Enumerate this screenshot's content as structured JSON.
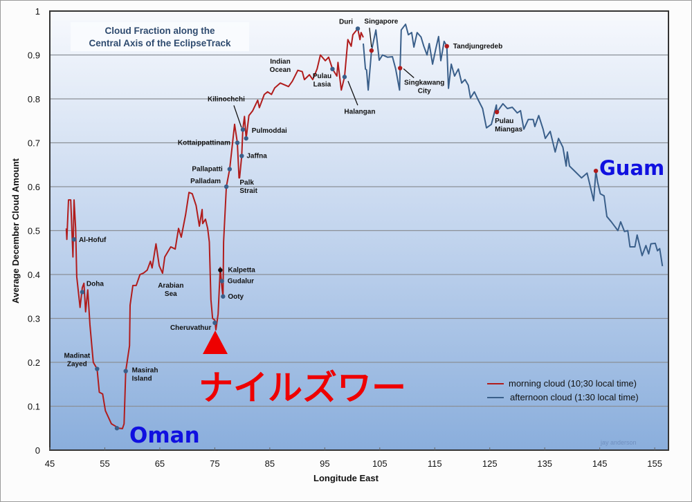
{
  "chart_data": {
    "type": "line",
    "title": "Cloud Fraction along the Central Axis of the EclipseTrack",
    "title_lines": [
      "Cloud Fraction along the",
      "Central Axis of the EclipseTrack"
    ],
    "xlabel": "Longitude East",
    "ylabel": "Average December Cloud Amount",
    "xlim": [
      45,
      157.5
    ],
    "ylim": [
      0,
      1
    ],
    "xticks": [
      "45",
      "55",
      "65",
      "75",
      "85",
      "95",
      "105",
      "115",
      "125",
      "135",
      "145",
      "155"
    ],
    "yticks": [
      "0",
      "0.1",
      "0.2",
      "0.3",
      "0.4",
      "0.5",
      "0.6",
      "0.7",
      "0.8",
      "0.9",
      "1"
    ],
    "grid": true,
    "legend_position": "bottom-right",
    "series": [
      {
        "name": "morning cloud (10;30 local time)",
        "color": "#b01c1c",
        "points": [
          [
            48.0,
            0.505
          ],
          [
            48.1,
            0.48
          ],
          [
            48.4,
            0.57
          ],
          [
            48.8,
            0.57
          ],
          [
            49.2,
            0.44
          ],
          [
            49.4,
            0.57
          ],
          [
            49.7,
            0.505
          ],
          [
            49.9,
            0.395
          ],
          [
            50.5,
            0.325
          ],
          [
            50.9,
            0.37
          ],
          [
            51.2,
            0.38
          ],
          [
            51.5,
            0.315
          ],
          [
            51.9,
            0.365
          ],
          [
            52.3,
            0.285
          ],
          [
            52.9,
            0.2
          ],
          [
            53.6,
            0.185
          ],
          [
            54.0,
            0.132
          ],
          [
            54.6,
            0.128
          ],
          [
            55.1,
            0.09
          ],
          [
            56.2,
            0.06
          ],
          [
            57.0,
            0.054
          ],
          [
            57.5,
            0.05
          ],
          [
            58.2,
            0.049
          ],
          [
            58.5,
            0.06
          ],
          [
            58.8,
            0.18
          ],
          [
            59.5,
            0.238
          ],
          [
            59.6,
            0.33
          ],
          [
            60.1,
            0.375
          ],
          [
            60.7,
            0.375
          ],
          [
            61.4,
            0.4
          ],
          [
            62.0,
            0.403
          ],
          [
            62.7,
            0.41
          ],
          [
            63.3,
            0.43
          ],
          [
            63.6,
            0.415
          ],
          [
            64.3,
            0.47
          ],
          [
            64.9,
            0.42
          ],
          [
            65.5,
            0.403
          ],
          [
            65.9,
            0.44
          ],
          [
            67.0,
            0.463
          ],
          [
            67.8,
            0.458
          ],
          [
            68.4,
            0.505
          ],
          [
            68.9,
            0.485
          ],
          [
            69.7,
            0.537
          ],
          [
            70.3,
            0.587
          ],
          [
            70.9,
            0.584
          ],
          [
            71.6,
            0.557
          ],
          [
            72.2,
            0.51
          ],
          [
            72.7,
            0.548
          ],
          [
            72.8,
            0.516
          ],
          [
            73.3,
            0.526
          ],
          [
            73.7,
            0.505
          ],
          [
            74.0,
            0.474
          ],
          [
            74.3,
            0.343
          ],
          [
            74.6,
            0.3
          ],
          [
            75.0,
            0.296
          ],
          [
            75.2,
            0.274
          ],
          [
            75.6,
            0.31
          ],
          [
            76.0,
            0.416
          ],
          [
            76.3,
            0.37
          ],
          [
            76.5,
            0.35
          ],
          [
            76.6,
            0.474
          ],
          [
            77.1,
            0.6
          ],
          [
            77.7,
            0.64
          ],
          [
            78.6,
            0.742
          ],
          [
            79.1,
            0.7
          ],
          [
            79.4,
            0.62
          ],
          [
            79.5,
            0.62
          ],
          [
            79.9,
            0.67
          ],
          [
            80.1,
            0.73
          ],
          [
            80.4,
            0.76
          ],
          [
            80.7,
            0.71
          ],
          [
            81.2,
            0.762
          ],
          [
            81.9,
            0.773
          ],
          [
            82.8,
            0.797
          ],
          [
            83.1,
            0.78
          ],
          [
            84.0,
            0.81
          ],
          [
            84.6,
            0.816
          ],
          [
            85.3,
            0.81
          ],
          [
            85.9,
            0.825
          ],
          [
            86.9,
            0.836
          ],
          [
            88.4,
            0.828
          ],
          [
            89.1,
            0.84
          ],
          [
            90.1,
            0.865
          ],
          [
            90.9,
            0.862
          ],
          [
            91.3,
            0.844
          ],
          [
            92.2,
            0.855
          ],
          [
            92.8,
            0.844
          ],
          [
            93.6,
            0.868
          ],
          [
            94.2,
            0.9
          ],
          [
            95.1,
            0.887
          ],
          [
            95.7,
            0.895
          ],
          [
            96.4,
            0.868
          ],
          [
            97.2,
            0.852
          ],
          [
            97.4,
            0.883
          ],
          [
            98.0,
            0.82
          ],
          [
            98.6,
            0.85
          ],
          [
            99.2,
            0.935
          ],
          [
            99.8,
            0.92
          ],
          [
            100.1,
            0.946
          ],
          [
            101.0,
            0.96
          ],
          [
            101.4,
            0.935
          ],
          [
            101.6,
            0.951
          ],
          [
            102.0,
            0.94
          ]
        ]
      },
      {
        "name": "afternoon cloud (1:30 local time)",
        "color": "#3a5f8a",
        "points": [
          [
            102.0,
            0.926
          ],
          [
            102.4,
            0.868
          ],
          [
            102.6,
            0.866
          ],
          [
            102.9,
            0.82
          ],
          [
            103.5,
            0.91
          ],
          [
            104.3,
            0.957
          ],
          [
            104.9,
            0.888
          ],
          [
            105.5,
            0.9
          ],
          [
            106.4,
            0.895
          ],
          [
            107.3,
            0.896
          ],
          [
            107.9,
            0.868
          ],
          [
            108.6,
            0.82
          ],
          [
            108.7,
            0.87
          ],
          [
            108.9,
            0.957
          ],
          [
            109.7,
            0.97
          ],
          [
            110.2,
            0.946
          ],
          [
            110.8,
            0.951
          ],
          [
            111.2,
            0.918
          ],
          [
            111.8,
            0.951
          ],
          [
            112.5,
            0.941
          ],
          [
            113.0,
            0.92
          ],
          [
            113.6,
            0.9
          ],
          [
            114.0,
            0.926
          ],
          [
            114.6,
            0.879
          ],
          [
            115.2,
            0.915
          ],
          [
            115.7,
            0.942
          ],
          [
            116.1,
            0.887
          ],
          [
            116.7,
            0.931
          ],
          [
            117.2,
            0.92
          ],
          [
            117.5,
            0.824
          ],
          [
            118.0,
            0.879
          ],
          [
            118.6,
            0.852
          ],
          [
            119.3,
            0.868
          ],
          [
            119.9,
            0.836
          ],
          [
            120.5,
            0.844
          ],
          [
            121.1,
            0.831
          ],
          [
            121.5,
            0.802
          ],
          [
            122.2,
            0.816
          ],
          [
            122.8,
            0.8
          ],
          [
            123.7,
            0.778
          ],
          [
            124.4,
            0.734
          ],
          [
            125.3,
            0.742
          ],
          [
            126.2,
            0.786
          ],
          [
            126.3,
            0.77
          ],
          [
            127.4,
            0.789
          ],
          [
            128.2,
            0.778
          ],
          [
            129.1,
            0.781
          ],
          [
            130.0,
            0.768
          ],
          [
            130.6,
            0.773
          ],
          [
            131.2,
            0.731
          ],
          [
            132.0,
            0.753
          ],
          [
            132.9,
            0.753
          ],
          [
            133.2,
            0.737
          ],
          [
            133.9,
            0.762
          ],
          [
            134.7,
            0.731
          ],
          [
            135.1,
            0.71
          ],
          [
            136.0,
            0.726
          ],
          [
            136.9,
            0.679
          ],
          [
            137.5,
            0.71
          ],
          [
            138.3,
            0.69
          ],
          [
            138.9,
            0.647
          ],
          [
            139.1,
            0.679
          ],
          [
            139.5,
            0.647
          ],
          [
            140.4,
            0.636
          ],
          [
            141.7,
            0.62
          ],
          [
            142.7,
            0.631
          ],
          [
            143.9,
            0.568
          ],
          [
            144.3,
            0.636
          ],
          [
            144.6,
            0.611
          ],
          [
            145.1,
            0.584
          ],
          [
            145.8,
            0.579
          ],
          [
            146.3,
            0.532
          ],
          [
            147.1,
            0.52
          ],
          [
            148.3,
            0.5
          ],
          [
            148.8,
            0.52
          ],
          [
            149.5,
            0.498
          ],
          [
            150.1,
            0.5
          ],
          [
            150.5,
            0.463
          ],
          [
            151.4,
            0.463
          ],
          [
            151.8,
            0.49
          ],
          [
            152.7,
            0.443
          ],
          [
            153.4,
            0.466
          ],
          [
            153.9,
            0.447
          ],
          [
            154.3,
            0.47
          ],
          [
            155.1,
            0.471
          ],
          [
            155.5,
            0.454
          ],
          [
            155.9,
            0.459
          ],
          [
            156.4,
            0.419
          ]
        ]
      }
    ],
    "locations": [
      {
        "name": "Al-Hofuf",
        "x": 49.4,
        "y": 0.48,
        "dot": "#3a5f8a"
      },
      {
        "name": "Doha",
        "x": 50.9,
        "y": 0.36,
        "dot": "#3a5f8a"
      },
      {
        "name": "Madinat Zayed",
        "x": 53.6,
        "y": 0.185,
        "dot": "#3a5f8a"
      },
      {
        "name": "Oman",
        "x": 57.2,
        "y": 0.05,
        "dot": "#3a5f8a"
      },
      {
        "name": "Masirah Island",
        "x": 58.8,
        "y": 0.18,
        "dot": "#3a5f8a"
      },
      {
        "name": "Cheruvathur",
        "x": 75.0,
        "y": 0.29,
        "dot": "#3a5f8a"
      },
      {
        "name": "Kalpetta",
        "x": 76.0,
        "y": 0.41,
        "dot": "#111111"
      },
      {
        "name": "Gudalur",
        "x": 76.3,
        "y": 0.385,
        "dot": "#3a5f8a"
      },
      {
        "name": "Ooty",
        "x": 76.5,
        "y": 0.35,
        "dot": "#3a5f8a"
      },
      {
        "name": "Palladam",
        "x": 77.1,
        "y": 0.6,
        "dot": "#3a5f8a"
      },
      {
        "name": "Pallapatti",
        "x": 77.7,
        "y": 0.64,
        "dot": "#3a5f8a"
      },
      {
        "name": "Kottaippattinam",
        "x": 79.1,
        "y": 0.7,
        "dot": "#3a5f8a"
      },
      {
        "name": "Jaffna",
        "x": 79.9,
        "y": 0.67,
        "dot": "#3a5f8a"
      },
      {
        "name": "Kilinochchi",
        "x": 80.1,
        "y": 0.73,
        "dot": "#3a5f8a"
      },
      {
        "name": "Pulmoddai",
        "x": 80.7,
        "y": 0.71,
        "dot": "#3a5f8a"
      },
      {
        "name": "Pulau Lasia",
        "x": 96.4,
        "y": 0.868,
        "dot": "#3a5f8a"
      },
      {
        "name": "Halangan",
        "x": 98.6,
        "y": 0.85,
        "dot": "#3a5f8a"
      },
      {
        "name": "Duri",
        "x": 101.0,
        "y": 0.96,
        "dot": "#3a5f8a"
      },
      {
        "name": "Singapore",
        "x": 103.5,
        "y": 0.91,
        "dot": "#b01c1c"
      },
      {
        "name": "Singkawang City",
        "x": 108.7,
        "y": 0.87,
        "dot": "#b01c1c"
      },
      {
        "name": "Tandjungredeb",
        "x": 117.2,
        "y": 0.92,
        "dot": "#b01c1c"
      },
      {
        "name": "Pulau Miangas",
        "x": 126.3,
        "y": 0.77,
        "dot": "#b01c1c"
      },
      {
        "name": "Guam",
        "x": 144.3,
        "y": 0.636,
        "dot": "#b01c1c"
      }
    ],
    "region_labels": [
      "Palk Strait",
      "Indian Ocean",
      "Arabian Sea"
    ],
    "overlay_text": {
      "japanese": "ナイルズワー",
      "oman": "Oman",
      "guam": "Guam",
      "credit": "jay anderson"
    },
    "colors": {
      "overlay_red": "#ee0000",
      "overlay_blue": "#1010e0",
      "title": "#2e4a6e"
    }
  }
}
